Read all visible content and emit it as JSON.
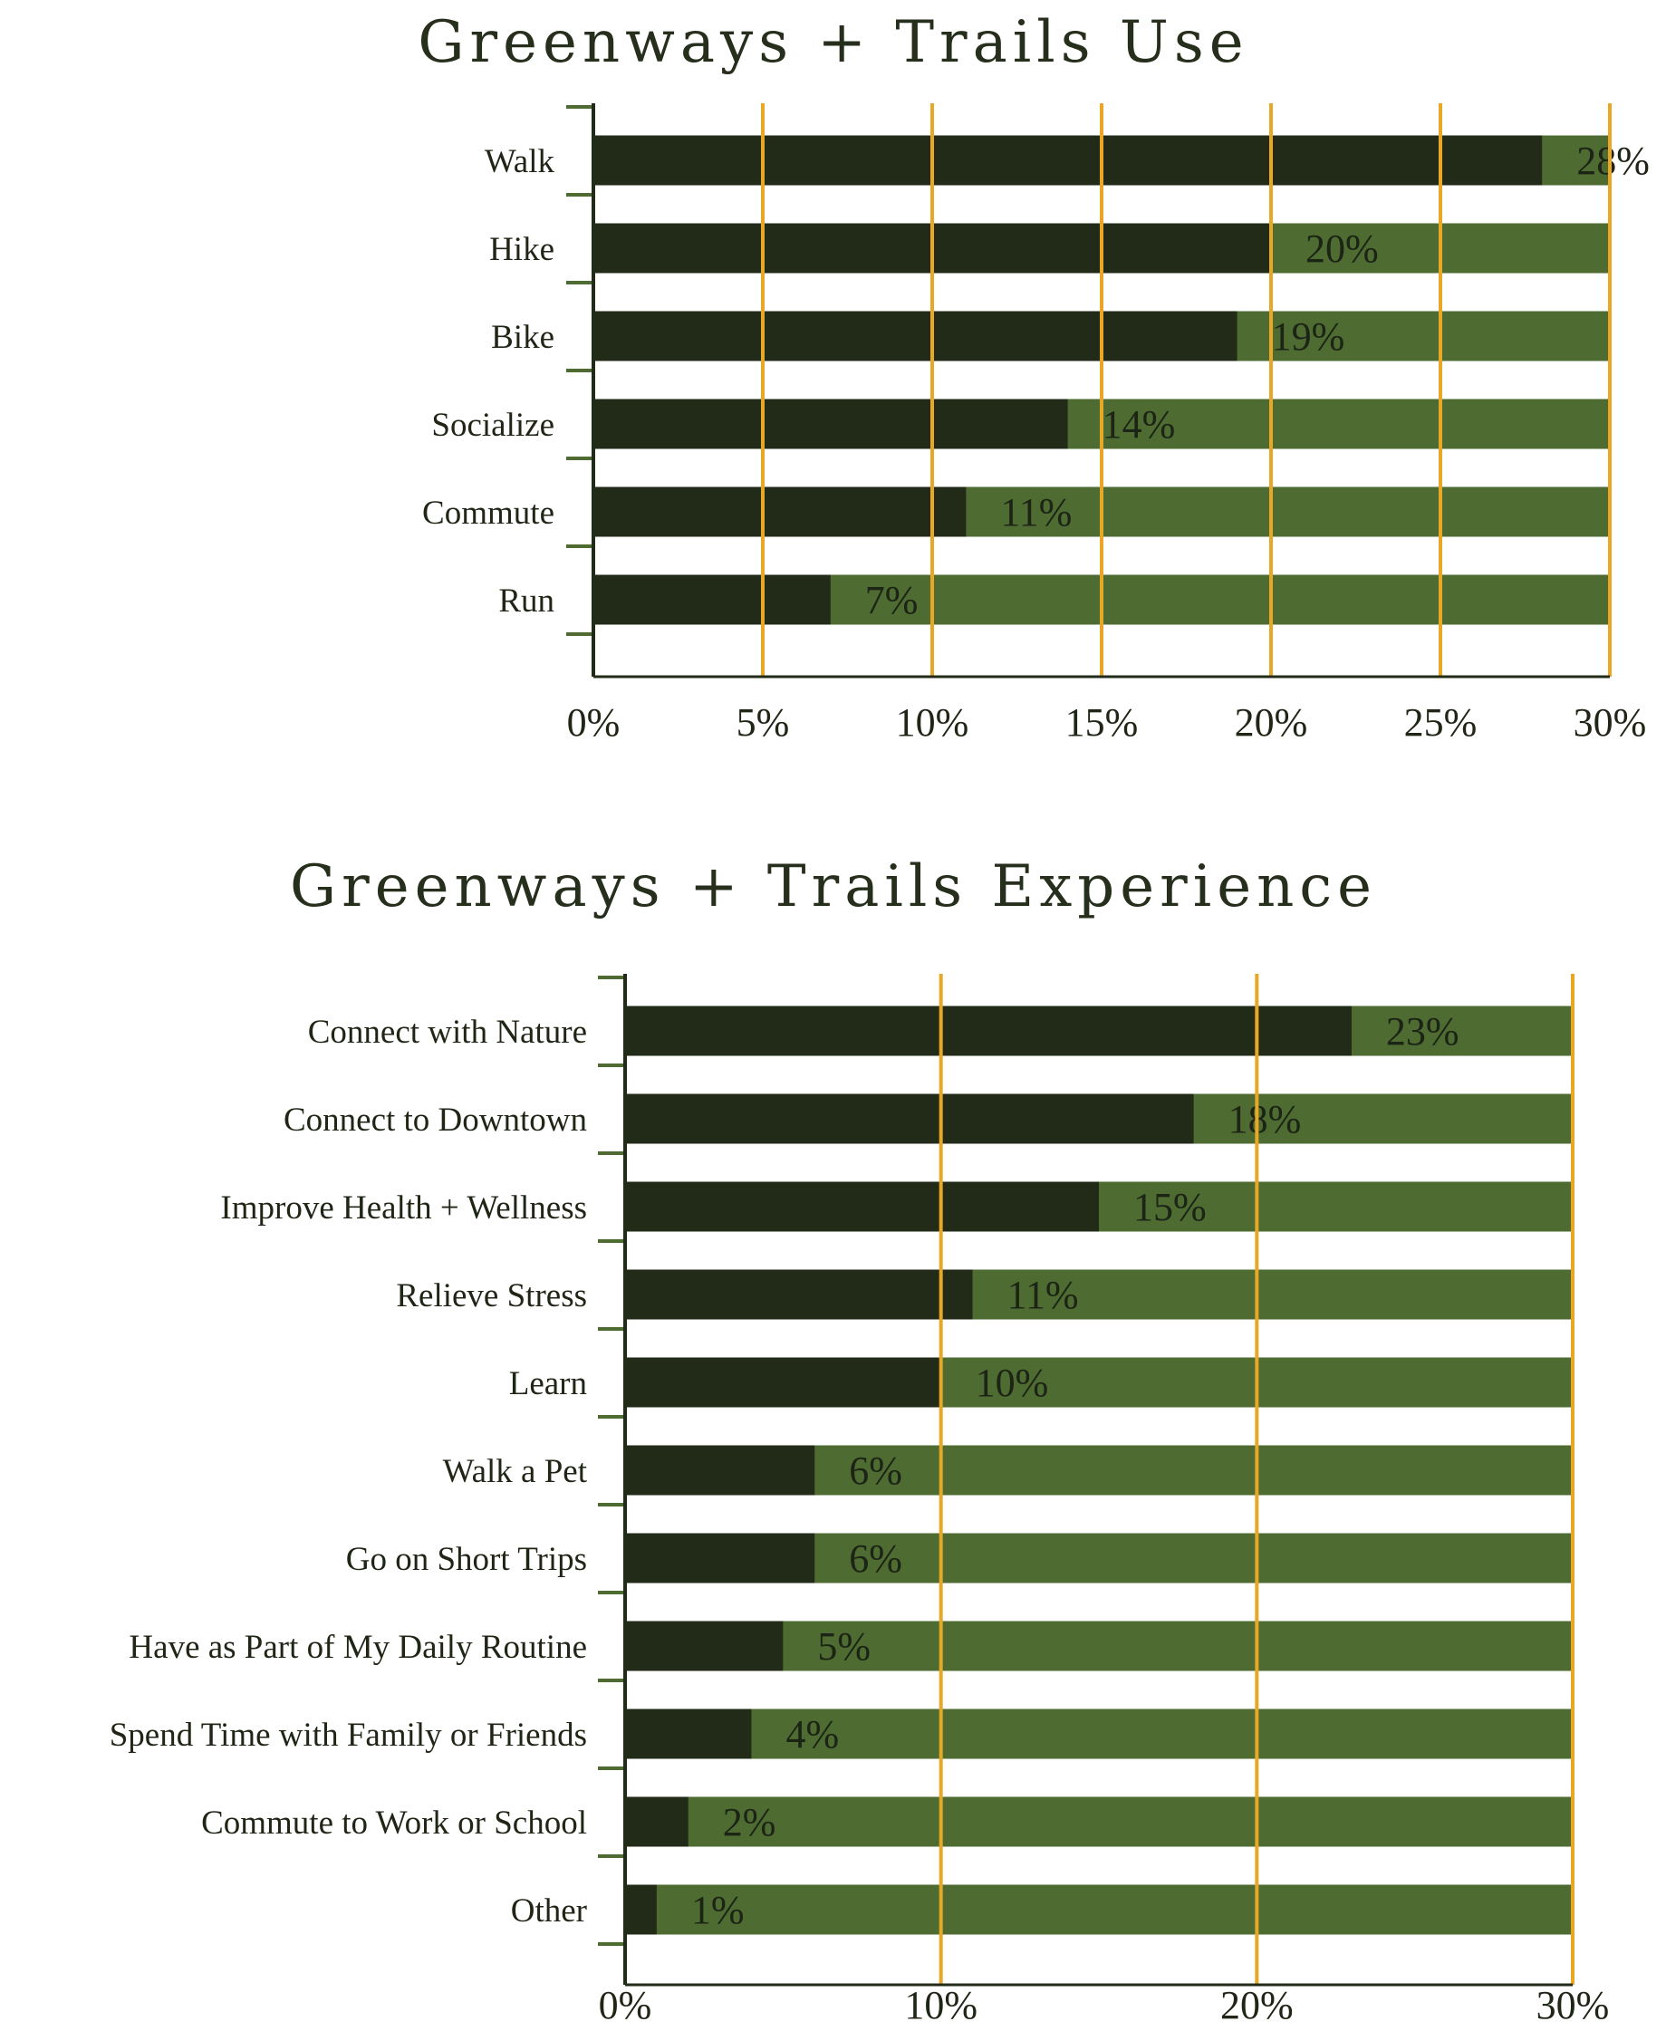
{
  "colors": {
    "bar_fill": "#222b17",
    "bar_track": "#4e6b31",
    "gridline": "#e8a724",
    "axis": "#222b17",
    "axis_tick": "#4e6b31"
  },
  "chart_data": [
    {
      "type": "bar",
      "orientation": "horizontal",
      "title": "Greenways + Trails Use",
      "categories": [
        "Walk",
        "Hike",
        "Bike",
        "Socialize",
        "Commute",
        "Run"
      ],
      "values": [
        28,
        20,
        19,
        14,
        11,
        7
      ],
      "data_labels": [
        "28%",
        "20%",
        "19%",
        "14%",
        "11%",
        "7%"
      ],
      "xlim": [
        0,
        30
      ],
      "xticks": [
        0,
        5,
        10,
        15,
        20,
        25,
        30
      ],
      "xtick_labels": [
        "0%",
        "5%",
        "10%",
        "15%",
        "20%",
        "25%",
        "30%"
      ],
      "xlabel": "",
      "ylabel": "",
      "grid": true
    },
    {
      "type": "bar",
      "orientation": "horizontal",
      "title": "Greenways + Trails Experience",
      "categories": [
        "Connect with Nature",
        "Connect to Downtown",
        "Improve Health + Wellness",
        "Relieve Stress",
        "Learn",
        "Walk a Pet",
        "Go on Short Trips",
        "Have as Part of My Daily Routine",
        "Spend Time with Family or Friends",
        "Commute to Work or School",
        "Other"
      ],
      "values": [
        23,
        18,
        15,
        11,
        10,
        6,
        6,
        5,
        4,
        2,
        1
      ],
      "data_labels": [
        "23%",
        "18%",
        "15%",
        "11%",
        "10%",
        "6%",
        "6%",
        "5%",
        "4%",
        "2%",
        "1%"
      ],
      "xlim": [
        0,
        30
      ],
      "xticks": [
        0,
        10,
        20,
        30
      ],
      "xtick_labels": [
        "0%",
        "10%",
        "20%",
        "30%"
      ],
      "xlabel": "",
      "ylabel": "",
      "grid": true
    }
  ]
}
